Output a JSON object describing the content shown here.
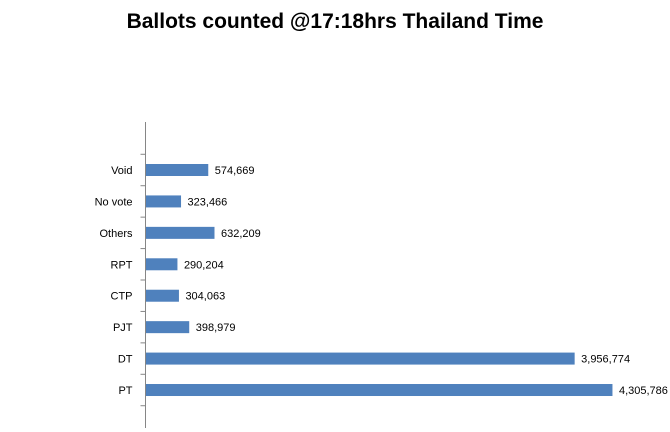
{
  "chart_data": {
    "type": "bar",
    "orientation": "horizontal",
    "title": "Ballots counted @17:18hrs Thailand Time",
    "xlabel": "",
    "ylabel": "",
    "categories": [
      "Void",
      "No vote",
      "Others",
      "RPT",
      "CTP",
      "PJT",
      "DT",
      "PT"
    ],
    "values": [
      574669,
      323466,
      632209,
      290204,
      304063,
      398979,
      3956774,
      4305786
    ],
    "value_labels": [
      "574,669",
      "323,466",
      "632,209",
      "290,204",
      "304,063",
      "398,979",
      "3,956,774",
      "4,305,786"
    ],
    "xlim": [
      0,
      4800000
    ],
    "grid": false,
    "legend": "none",
    "bar_color": "#4f81bd",
    "axis_color": "#868686"
  }
}
